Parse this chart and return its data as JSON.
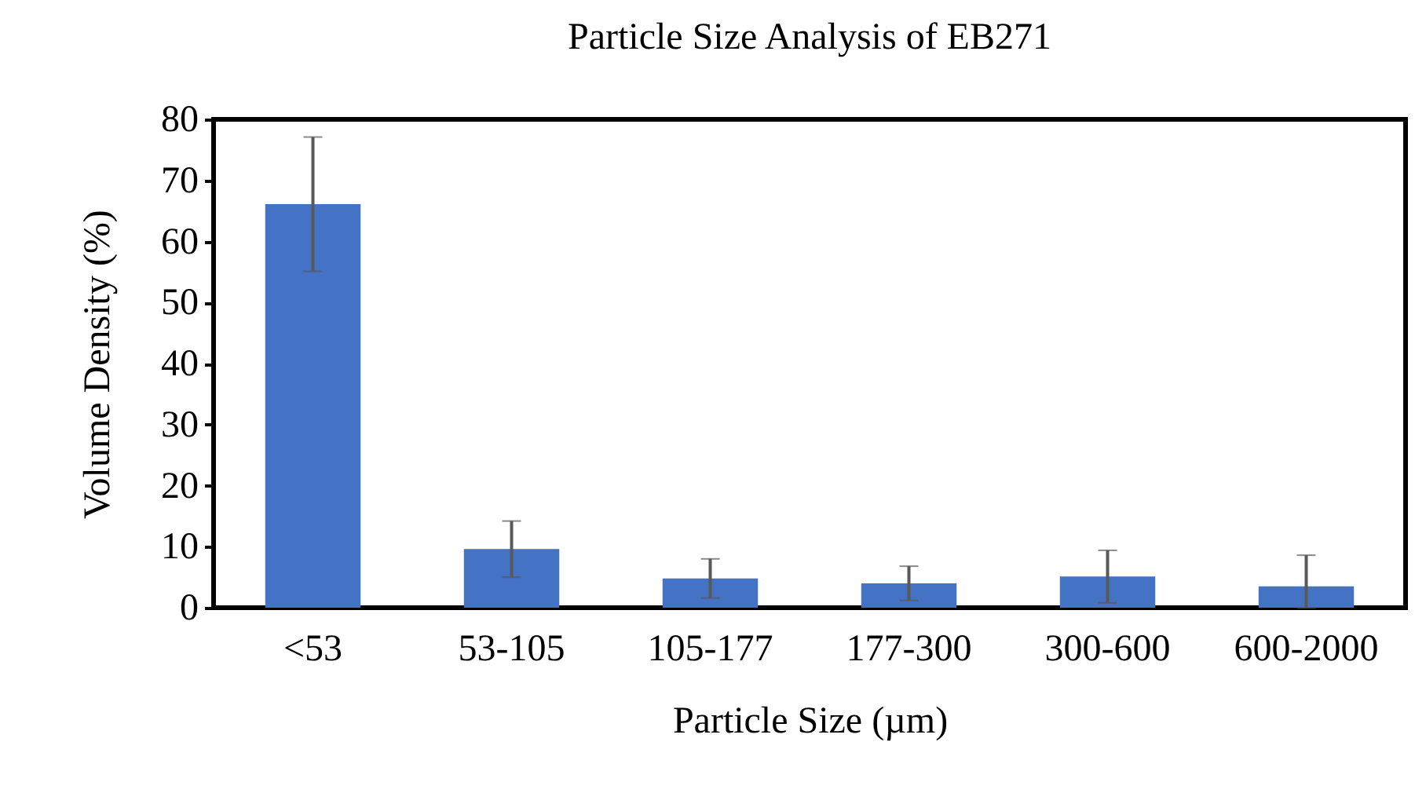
{
  "chart_data": {
    "type": "bar",
    "title": "Particle Size Analysis of EB271",
    "xlabel": "Particle Size (µm)",
    "ylabel": "Volume Density (%)",
    "categories": [
      "<53",
      "53-105",
      "105-177",
      "177-300",
      "300-600",
      "600-2000"
    ],
    "values": [
      66.1,
      9.6,
      4.8,
      4.0,
      5.1,
      3.5
    ],
    "errors": [
      11,
      4.6,
      3.2,
      2.8,
      4.3,
      [
        0,
        8.6
      ]
    ],
    "color": "#4472c4",
    "ylim": [
      0,
      80
    ],
    "yticks": [
      0,
      10,
      20,
      30,
      40,
      50,
      60,
      70,
      80
    ],
    "grid": false
  }
}
